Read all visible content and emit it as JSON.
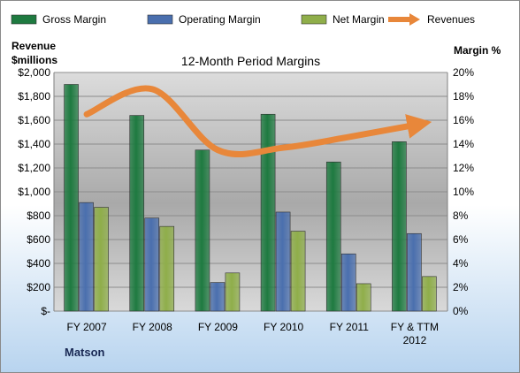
{
  "chart_data": {
    "type": "bar",
    "title": "12-Month Period Margins",
    "company_label": "Matson",
    "left_axis": {
      "label_line1": "Revenue",
      "label_line2": "$millions",
      "range": [
        0,
        2000
      ],
      "ticks": [
        "$-",
        "$200",
        "$400",
        "$600",
        "$800",
        "$1,000",
        "$1,200",
        "$1,400",
        "$1,600",
        "$1,800",
        "$2,000"
      ]
    },
    "right_axis": {
      "label": "Margin %",
      "range": [
        0,
        20
      ],
      "ticks": [
        "0%",
        "2%",
        "4%",
        "6%",
        "8%",
        "10%",
        "12%",
        "14%",
        "16%",
        "18%",
        "20%"
      ]
    },
    "categories": [
      "FY 2007",
      "FY 2008",
      "FY 2009",
      "FY 2010",
      "FY 2011",
      "FY & TTM 2012"
    ],
    "series": [
      {
        "name": "Gross Margin",
        "kind": "bar",
        "color": "#1e7a40",
        "values": [
          19.0,
          16.4,
          13.5,
          16.5,
          12.5,
          14.2
        ]
      },
      {
        "name": "Operating Margin",
        "kind": "bar",
        "color": "#4a6fae",
        "values": [
          9.1,
          7.8,
          2.4,
          8.3,
          4.8,
          6.5
        ]
      },
      {
        "name": "Net Margin",
        "kind": "bar",
        "color": "#8fae4a",
        "values": [
          8.7,
          7.1,
          3.2,
          6.7,
          2.3,
          2.9
        ]
      },
      {
        "name": "Revenues",
        "kind": "line",
        "color": "#e8873a",
        "values": [
          1650,
          1860,
          1350,
          1370,
          1460,
          1560
        ]
      }
    ],
    "grid": true,
    "legend": "top"
  }
}
